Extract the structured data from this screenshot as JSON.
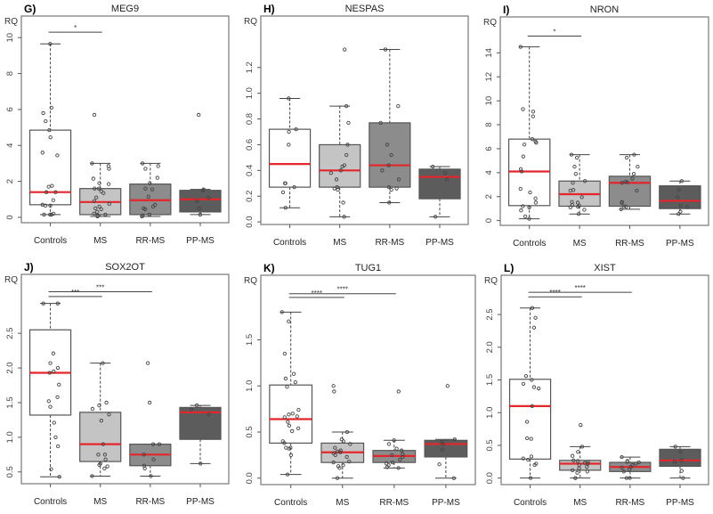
{
  "chart_data": [
    {
      "type": "box",
      "panel": "G)",
      "title": "MEG9",
      "ylabel": "RQ",
      "categories": [
        "Controls",
        "MS",
        "RR-MS",
        "PP-MS"
      ],
      "yticks": [
        0,
        2,
        4,
        6,
        8,
        10
      ],
      "ytick_labels": [
        "0",
        "2",
        "4",
        "6",
        "8",
        "10"
      ],
      "ylim": [
        -0.3,
        11.2
      ],
      "fills": [
        "#ffffff",
        "#c4c4c4",
        "#8c8c8c",
        "#5c5c5c"
      ],
      "boxes": [
        {
          "whisker_low": 0.15,
          "q1": 0.7,
          "median": 1.4,
          "q3": 4.85,
          "whisker_high": 9.65,
          "points": [
            9.65,
            6.1,
            5.8,
            5.35,
            4.85,
            4.45,
            3.6,
            3.45,
            1.75,
            1.7,
            1.4,
            1.4,
            0.95,
            0.7,
            0.65,
            0.65,
            0.2,
            0.15,
            0.15,
            0.15
          ]
        },
        {
          "whisker_low": 0.05,
          "q1": 0.15,
          "median": 0.85,
          "q3": 1.6,
          "whisker_high": 3.0,
          "points": [
            5.7,
            3.0,
            2.85,
            2.7,
            2.15,
            1.9,
            1.85,
            1.6,
            1.6,
            1.45,
            1.35,
            1.1,
            0.9,
            0.75,
            0.6,
            0.5,
            0.45,
            0.3,
            0.2,
            0.15,
            0.1,
            0.05
          ]
        },
        {
          "whisker_low": 0.05,
          "q1": 0.15,
          "median": 0.95,
          "q3": 1.85,
          "whisker_high": 3.0,
          "points": [
            3.0,
            2.85,
            2.7,
            2.2,
            1.9,
            1.6,
            1.55,
            1.15,
            0.7,
            0.6,
            0.5,
            0.45,
            0.15,
            0.1,
            0.05
          ]
        },
        {
          "whisker_low": 0.15,
          "q1": 0.3,
          "median": 1.0,
          "q3": 1.5,
          "whisker_high": 1.55,
          "points": [
            5.7,
            1.55,
            1.5,
            1.1,
            0.9,
            0.5,
            0.15
          ]
        }
      ],
      "significance": [
        {
          "from": 0,
          "to": 1,
          "label": "*",
          "y": 10.3
        }
      ]
    },
    {
      "type": "box",
      "panel": "H)",
      "title": "NESPAS",
      "ylabel": "RQ",
      "categories": [
        "Controls",
        "MS",
        "RR-MS",
        "PP-MS"
      ],
      "yticks": [
        0.0,
        0.2,
        0.4,
        0.6,
        0.8,
        1.0,
        1.2
      ],
      "ytick_labels": [
        "0.0",
        "0.2",
        "0.4",
        "0.6",
        "0.8",
        "1.0",
        "1.2"
      ],
      "ylim": [
        -0.02,
        1.6
      ],
      "fills": [
        "#ffffff",
        "#c4c4c4",
        "#8c8c8c",
        "#5c5c5c"
      ],
      "boxes": [
        {
          "whisker_low": 0.11,
          "q1": 0.27,
          "median": 0.45,
          "q3": 0.72,
          "whisker_high": 0.96,
          "points": [
            0.96,
            0.72,
            0.7,
            0.6,
            0.3,
            0.3,
            0.27,
            0.23,
            0.11
          ]
        },
        {
          "whisker_low": 0.04,
          "q1": 0.27,
          "median": 0.4,
          "q3": 0.6,
          "whisker_high": 0.9,
          "points": [
            1.34,
            0.9,
            0.77,
            0.6,
            0.52,
            0.44,
            0.43,
            0.4,
            0.38,
            0.33,
            0.27,
            0.26,
            0.25,
            0.15,
            0.04
          ]
        },
        {
          "whisker_low": 0.15,
          "q1": 0.27,
          "median": 0.44,
          "q3": 0.77,
          "whisker_high": 1.34,
          "points": [
            1.34,
            0.9,
            0.77,
            0.6,
            0.52,
            0.44,
            0.4,
            0.33,
            0.27,
            0.26,
            0.25,
            0.15
          ]
        },
        {
          "whisker_low": 0.04,
          "q1": 0.18,
          "median": 0.35,
          "q3": 0.41,
          "whisker_high": 0.43,
          "points": [
            0.43,
            0.38,
            0.33,
            0.04
          ]
        }
      ],
      "significance": []
    },
    {
      "type": "box",
      "panel": "I)",
      "title": "NRON",
      "ylabel": "RQ",
      "categories": [
        "Controls",
        "MS",
        "RR-MS",
        "PP-MS"
      ],
      "yticks": [
        0,
        2,
        4,
        6,
        8,
        10,
        12,
        14
      ],
      "ytick_labels": [
        "0",
        "2",
        "4",
        "6",
        "8",
        "10",
        "12",
        "14"
      ],
      "ylim": [
        -0.4,
        17.0
      ],
      "fills": [
        "#ffffff",
        "#c4c4c4",
        "#8c8c8c",
        "#5c5c5c"
      ],
      "boxes": [
        {
          "whisker_low": 0.15,
          "q1": 1.25,
          "median": 4.1,
          "q3": 6.8,
          "whisker_high": 14.5,
          "points": [
            14.5,
            9.3,
            9.1,
            8.7,
            6.8,
            6.5,
            6.35,
            6.6,
            5.35,
            4.3,
            4.1,
            2.65,
            2.35,
            1.85,
            1.5,
            1.2,
            1.1,
            0.85,
            0.35,
            0.15
          ]
        },
        {
          "whisker_low": 0.55,
          "q1": 1.2,
          "median": 2.2,
          "q3": 3.3,
          "whisker_high": 5.5,
          "points": [
            5.5,
            5.25,
            4.5,
            3.9,
            3.3,
            3.15,
            2.55,
            2.5,
            1.95,
            1.55,
            1.5,
            1.3,
            1.25,
            1.15,
            1.1,
            0.9,
            0.55
          ]
        },
        {
          "whisker_low": 0.95,
          "q1": 1.2,
          "median": 3.15,
          "q3": 3.7,
          "whisker_high": 5.5,
          "points": [
            5.5,
            5.25,
            4.5,
            3.9,
            3.5,
            3.25,
            3.2,
            3.15,
            2.5,
            1.55,
            1.5,
            1.2,
            1.15,
            0.95
          ]
        },
        {
          "whisker_low": 0.55,
          "q1": 1.0,
          "median": 1.65,
          "q3": 2.9,
          "whisker_high": 3.3,
          "points": [
            3.3,
            2.55,
            1.95,
            1.25,
            1.15,
            0.75,
            0.55
          ]
        }
      ],
      "significance": [
        {
          "from": 0,
          "to": 1,
          "label": "*",
          "y": 15.4
        }
      ]
    },
    {
      "type": "box",
      "panel": "J)",
      "title": "SOX2OT",
      "ylabel": "RQ",
      "categories": [
        "Controls",
        "MS",
        "RR-MS",
        "PP-MS"
      ],
      "yticks": [
        0.5,
        1.0,
        1.5,
        2.0,
        2.5
      ],
      "ytick_labels": [
        "0.5",
        "1.0",
        "1.5",
        "2.0",
        "2.5"
      ],
      "ylim": [
        0.33,
        3.35
      ],
      "fills": [
        "#ffffff",
        "#c4c4c4",
        "#8c8c8c",
        "#5c5c5c"
      ],
      "boxes": [
        {
          "whisker_low": 0.43,
          "q1": 1.32,
          "median": 1.93,
          "q3": 2.55,
          "whisker_high": 2.93,
          "points": [
            2.93,
            2.93,
            2.21,
            2.07,
            2.0,
            1.95,
            1.93,
            1.76,
            1.58,
            1.52,
            1.44,
            1.21,
            1.0,
            0.87,
            0.54,
            0.43
          ]
        },
        {
          "whisker_low": 0.44,
          "q1": 0.65,
          "median": 0.9,
          "q3": 1.36,
          "whisker_high": 2.07,
          "points": [
            2.07,
            1.5,
            1.46,
            1.41,
            1.33,
            1.24,
            0.9,
            0.75,
            0.75,
            0.68,
            0.62,
            0.6,
            0.58,
            0.55,
            0.44
          ]
        },
        {
          "whisker_low": 0.44,
          "q1": 0.59,
          "median": 0.75,
          "q3": 0.9,
          "whisker_high": 0.9,
          "points": [
            2.07,
            1.5,
            0.9,
            0.9,
            0.75,
            0.68,
            0.59,
            0.55,
            0.44
          ]
        },
        {
          "whisker_low": 0.62,
          "q1": 0.97,
          "median": 1.36,
          "q3": 1.43,
          "whisker_high": 1.46,
          "points": [
            1.46,
            1.4,
            1.33,
            0.62
          ]
        }
      ],
      "significance": [
        {
          "from": 0,
          "to": 1,
          "label": "***",
          "y": 3.03
        },
        {
          "from": 0,
          "to": 2,
          "label": "***",
          "y": 3.1
        }
      ]
    },
    {
      "type": "box",
      "panel": "K)",
      "title": "TUG1",
      "ylabel": "RQ",
      "categories": [
        "Controls",
        "MS",
        "RR-MS",
        "PP-MS"
      ],
      "yticks": [
        0.0,
        0.5,
        1.0,
        1.5
      ],
      "ytick_labels": [
        "0.0",
        "0.5",
        "1.0",
        "1.5"
      ],
      "ylim": [
        -0.07,
        2.2
      ],
      "fills": [
        "#ffffff",
        "#c4c4c4",
        "#8c8c8c",
        "#5c5c5c"
      ],
      "boxes": [
        {
          "whisker_low": 0.04,
          "q1": 0.38,
          "median": 0.64,
          "q3": 1.01,
          "whisker_high": 1.8,
          "points": [
            1.8,
            1.7,
            1.35,
            1.13,
            1.08,
            1.04,
            0.99,
            0.74,
            0.7,
            0.69,
            0.67,
            0.66,
            0.61,
            0.57,
            0.54,
            0.51,
            0.4,
            0.38,
            0.33,
            0.33,
            0.32,
            0.25,
            0.04
          ]
        },
        {
          "whisker_low": 0.0,
          "q1": 0.17,
          "median": 0.28,
          "q3": 0.38,
          "whisker_high": 0.5,
          "points": [
            1.0,
            0.94,
            0.5,
            0.42,
            0.4,
            0.37,
            0.33,
            0.3,
            0.29,
            0.28,
            0.27,
            0.25,
            0.23,
            0.18,
            0.17,
            0.14,
            0.13,
            0.11,
            0.0
          ]
        },
        {
          "whisker_low": 0.11,
          "q1": 0.17,
          "median": 0.24,
          "q3": 0.3,
          "whisker_high": 0.41,
          "points": [
            0.94,
            0.41,
            0.37,
            0.32,
            0.3,
            0.26,
            0.25,
            0.23,
            0.2,
            0.17,
            0.16,
            0.14,
            0.12,
            0.11
          ]
        },
        {
          "whisker_low": 0.0,
          "q1": 0.23,
          "median": 0.37,
          "q3": 0.41,
          "whisker_high": 0.42,
          "points": [
            1.0,
            0.42,
            0.39,
            0.37,
            0.31,
            0.15,
            0.0
          ]
        }
      ],
      "significance": [
        {
          "from": 0,
          "to": 1,
          "label": "****",
          "y": 1.96
        },
        {
          "from": 0,
          "to": 2,
          "label": "****",
          "y": 2.0
        }
      ]
    },
    {
      "type": "box",
      "panel": "L)",
      "title": "XIST",
      "ylabel": "RQ",
      "categories": [
        "Controls",
        "MS",
        "RR-MS",
        "PP-MS"
      ],
      "yticks": [
        0.0,
        0.5,
        1.0,
        1.5,
        2.0,
        2.5
      ],
      "ytick_labels": [
        "0.0",
        "0.5",
        "1.0",
        "1.5",
        "2.0",
        "2.5"
      ],
      "ylim": [
        -0.1,
        3.1
      ],
      "fills": [
        "#ffffff",
        "#c4c4c4",
        "#8c8c8c",
        "#5c5c5c"
      ],
      "boxes": [
        {
          "whisker_low": 0.0,
          "q1": 0.29,
          "median": 1.1,
          "q3": 1.51,
          "whisker_high": 2.6,
          "points": [
            2.6,
            2.45,
            2.3,
            1.56,
            1.5,
            1.44,
            1.39,
            1.37,
            1.1,
            0.86,
            0.61,
            0.6,
            0.33,
            0.3,
            0.28,
            0.22,
            0.2,
            0.0
          ]
        },
        {
          "whisker_low": 0.0,
          "q1": 0.12,
          "median": 0.22,
          "q3": 0.27,
          "whisker_high": 0.48,
          "points": [
            0.81,
            0.48,
            0.4,
            0.34,
            0.27,
            0.26,
            0.25,
            0.23,
            0.22,
            0.2,
            0.17,
            0.15,
            0.12,
            0.1,
            0.08,
            0.0,
            0.0
          ]
        },
        {
          "whisker_low": 0.0,
          "q1": 0.1,
          "median": 0.17,
          "q3": 0.24,
          "whisker_high": 0.32,
          "points": [
            0.32,
            0.26,
            0.25,
            0.24,
            0.22,
            0.2,
            0.17,
            0.16,
            0.13,
            0.1,
            0.0,
            0.0
          ]
        },
        {
          "whisker_low": 0.0,
          "q1": 0.18,
          "median": 0.27,
          "q3": 0.44,
          "whisker_high": 0.48,
          "points": [
            0.48,
            0.4,
            0.27,
            0.25,
            0.11,
            0.0
          ]
        }
      ],
      "significance": [
        {
          "from": 0,
          "to": 1,
          "label": "****",
          "y": 2.77
        },
        {
          "from": 0,
          "to": 2,
          "label": "****",
          "y": 2.84
        }
      ]
    }
  ],
  "style": {
    "median_color": "#e3262b",
    "point_stroke": "#444444",
    "frame_color": "#777777",
    "whisker_color": "#444444"
  }
}
